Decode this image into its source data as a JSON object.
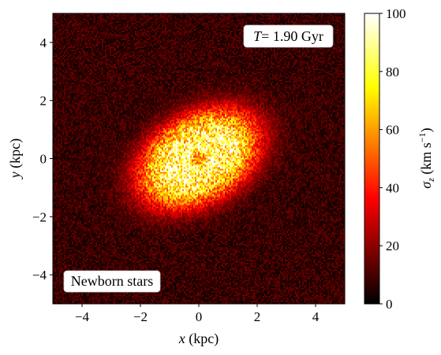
{
  "chart_data": {
    "type": "heatmap",
    "title": "",
    "xlabel": {
      "var": "x",
      "unit": " (kpc)"
    },
    "ylabel": {
      "var": "y",
      "unit": " (kpc)"
    },
    "xlim": [
      -5,
      5
    ],
    "ylim": [
      -5,
      5
    ],
    "xticks": [
      -4,
      -2,
      0,
      2,
      4
    ],
    "yticks": [
      -4,
      -2,
      0,
      2,
      4
    ],
    "xtick_labels": [
      "−4",
      "−2",
      "0",
      "2",
      "4"
    ],
    "ytick_labels": [
      "−4",
      "−2",
      "0",
      "2",
      "4"
    ],
    "colormap": "hot",
    "colorbar": {
      "label": {
        "var": "σ",
        "sub": "z",
        "unit": " (km s",
        "exp": "−1",
        "close": ")"
      },
      "range": [
        0,
        100
      ],
      "ticks": [
        0,
        20,
        40,
        60,
        80,
        100
      ],
      "tick_labels": [
        "0",
        "20",
        "40",
        "60",
        "80",
        "100"
      ]
    },
    "annotations": {
      "time": {
        "var": "T",
        "value": "= 1.90 Gyr"
      },
      "population": "Newborn stars"
    },
    "field": {
      "description": "inclined elongated disc, bar along major axis",
      "major_axis_angle_deg": 30,
      "major_axis_scale_kpc": 2.2,
      "minor_axis_scale_kpc": 1.45,
      "peak_sigma": 100,
      "background_sigma": 8,
      "central_ring_radius_kpc": 0.45,
      "central_ring_sigma": 52,
      "noise_fraction": 0.35
    }
  }
}
